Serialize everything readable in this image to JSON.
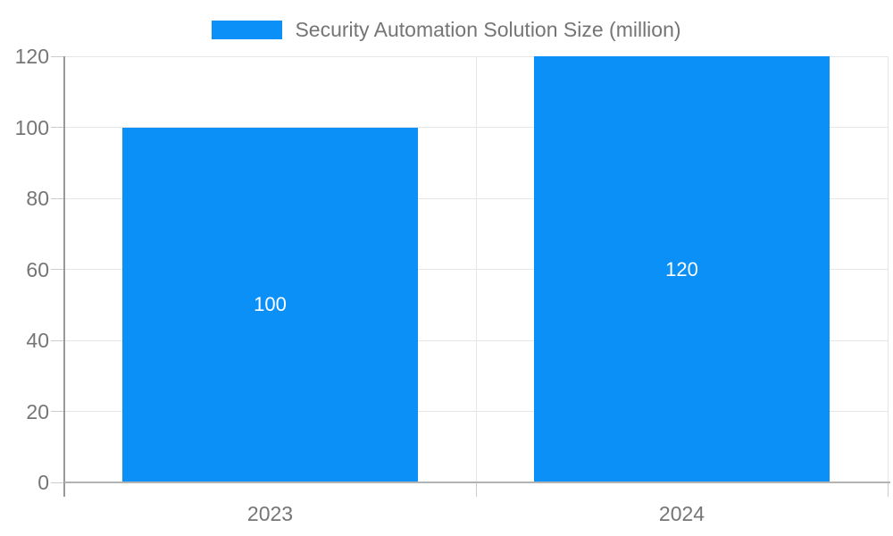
{
  "chart_data": {
    "type": "bar",
    "title": "",
    "legend": "Security Automation Solution Size (million)",
    "legend_position": "top-center",
    "categories": [
      "2023",
      "2024"
    ],
    "series": [
      {
        "name": "Security Automation Solution Size (million)",
        "values": [
          100,
          120
        ]
      }
    ],
    "value_labels": [
      "100",
      "120"
    ],
    "xlabel": "",
    "ylabel": "",
    "ylim": [
      0,
      120
    ],
    "yticks": [
      0,
      20,
      40,
      60,
      80,
      100,
      120
    ],
    "grid": true,
    "colors": {
      "bar": "#0b90f8",
      "bar_value_label": "#ffffff",
      "axis_line": "#999999",
      "bottom_axis_line": "#b3b3b3",
      "gridline": "#e6e6e6",
      "tick_mark": "#cccccc",
      "tick_label": "#757575",
      "legend_text": "#757575",
      "background": "#ffffff"
    }
  }
}
